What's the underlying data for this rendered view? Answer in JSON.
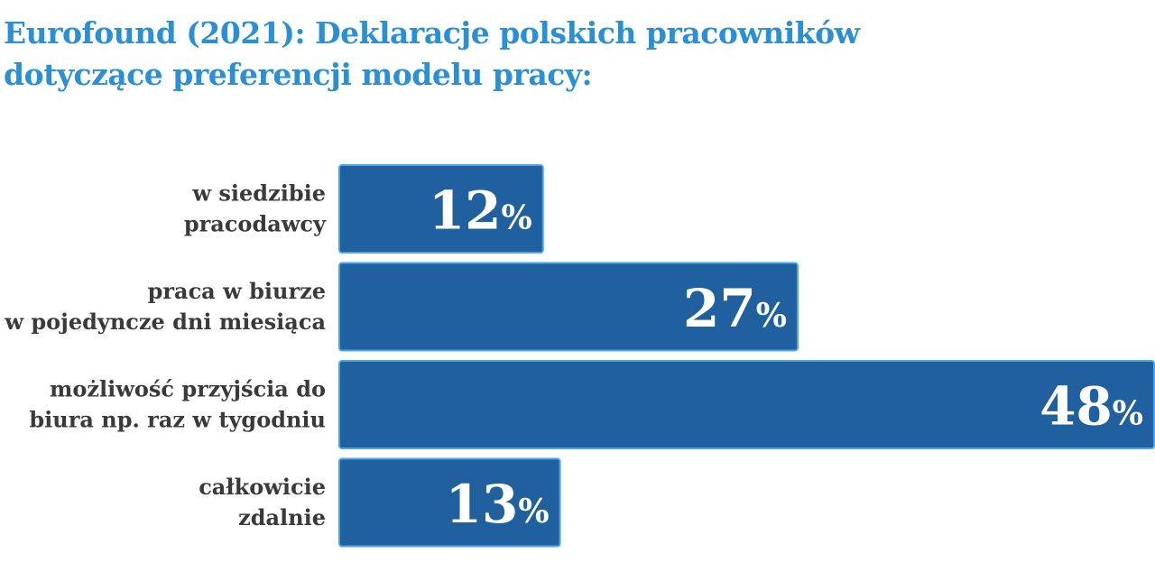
{
  "chart_data": {
    "type": "bar",
    "orientation": "horizontal",
    "title": "Eurofound (2021): Deklaracje polskich pracowników dotyczące preferencji modelu pracy:",
    "categories": [
      [
        "w siedzibie",
        "pracodawcy"
      ],
      [
        "praca w biurze",
        "w pojedyncze dni miesiąca"
      ],
      [
        "możliwość przyjścia do",
        "biura np. raz w tygodniu"
      ],
      [
        "całkowicie",
        "zdalnie"
      ]
    ],
    "values": [
      12,
      27,
      48,
      13
    ],
    "value_labels": [
      "12",
      "27",
      "48",
      "13"
    ],
    "value_suffix": "%",
    "xlim": [
      0,
      48
    ],
    "grid": false,
    "legend": "none",
    "colors": {
      "bar": "#20609f",
      "bar_border": "#4aa6e8",
      "title": "#2b8fd6",
      "label": "#3a3a3a",
      "value_text": "#ffffff"
    }
  }
}
